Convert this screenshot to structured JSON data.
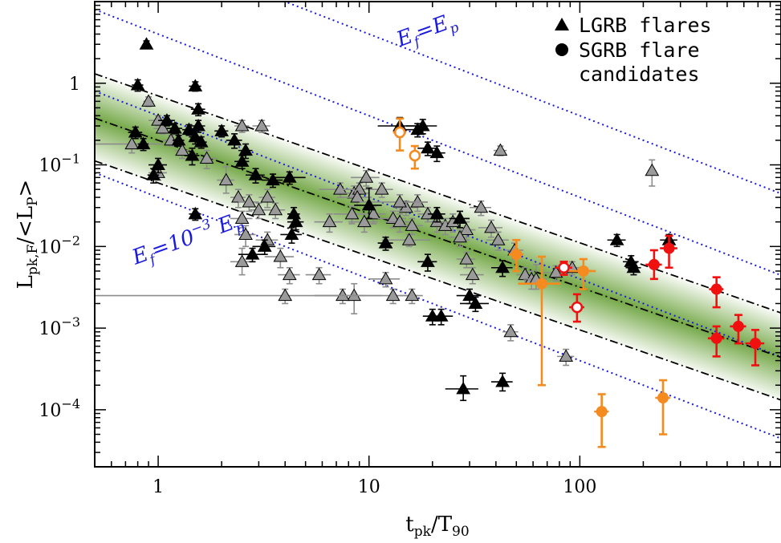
{
  "chart_data": {
    "type": "scatter",
    "xlabel": {
      "main": "t",
      "sub1": "pk",
      "mid": "/T",
      "sub2": "90"
    },
    "ylabel": {
      "main": "L",
      "sub1": "pk,F",
      "mid": "/<L",
      "sub2": "P",
      "end": ">"
    },
    "x_scale": "log",
    "y_scale": "log",
    "xlim": [
      0.5,
      900
    ],
    "ylim": [
      2e-05,
      10
    ],
    "x_ticks": [
      {
        "value": 1,
        "label": "1"
      },
      {
        "value": 10,
        "label": "10"
      },
      {
        "value": 100,
        "label": "100"
      }
    ],
    "y_ticks": [
      {
        "value": 1,
        "label": "1",
        "base": "",
        "exp": ""
      },
      {
        "value": 0.1,
        "label": "",
        "base": "10",
        "exp": "−1"
      },
      {
        "value": 0.01,
        "label": "",
        "base": "10",
        "exp": "−2"
      },
      {
        "value": 0.001,
        "label": "",
        "base": "10",
        "exp": "−3"
      },
      {
        "value": 0.0001,
        "label": "",
        "base": "10",
        "exp": "−4"
      }
    ],
    "legend": {
      "position": "top-right",
      "entries": [
        {
          "marker": "triangle",
          "label_lines": [
            "LGRB flares"
          ]
        },
        {
          "marker": "circle",
          "label_lines": [
            "SGRB flare",
            "candidates"
          ]
        }
      ]
    },
    "annotations": [
      {
        "text_main": "E",
        "sub": "f",
        "eq": "=E",
        "sub2": "p",
        "sup": "",
        "tail": "",
        "x": 14,
        "y": 2.8,
        "angle": -20
      },
      {
        "text_main": "E",
        "sub": "f",
        "eq": "=10",
        "sup": "−3",
        "tail": " E",
        "sub2": "p",
        "x": 0.78,
        "y": 0.006,
        "angle": -20
      }
    ],
    "colors": {
      "lgrb_black": "#000000",
      "lgrb_gray": "#8c8c8c",
      "sgrb_orange": "#f58a1f",
      "sgrb_red": "#f01010",
      "reference_lines": "#1a1adf",
      "fit_lines": "#000000",
      "band": "#5e9a2a"
    },
    "reference_lines": [
      {
        "slope": -1,
        "amplitude": 40
      },
      {
        "slope": -1,
        "amplitude": 4
      },
      {
        "slope": -1,
        "amplitude": 0.4
      },
      {
        "slope": -1,
        "amplitude": 0.04
      }
    ],
    "fit": {
      "slope": -0.9,
      "center_amplitude": 0.2,
      "upper_amplitude": 0.7,
      "lower_amplitude": 0.06
    },
    "series": [
      {
        "kind": "lgrb_black",
        "points": [
          [
            0.88,
            3.0,
            0.03,
            0.3,
            0.3
          ],
          [
            0.8,
            0.95,
            0.05,
            0.15,
            0.15
          ],
          [
            1.5,
            0.92,
            0.1,
            0.12,
            0.12
          ],
          [
            1.55,
            0.48,
            0.12,
            0.08,
            0.08
          ],
          [
            0.78,
            0.25,
            0.06,
            0.04,
            0.04
          ],
          [
            0.85,
            0.18,
            0.05,
            0.03,
            0.03
          ],
          [
            1.1,
            0.35,
            0.1,
            0.05,
            0.05
          ],
          [
            1.2,
            0.28,
            0.1,
            0.04,
            0.04
          ],
          [
            1.25,
            0.2,
            0.08,
            0.03,
            0.03
          ],
          [
            1.4,
            0.27,
            0.1,
            0.04,
            0.04
          ],
          [
            1.5,
            0.22,
            0.1,
            0.04,
            0.04
          ],
          [
            1.55,
            0.3,
            0.12,
            0.05,
            0.05
          ],
          [
            1.6,
            0.19,
            0.1,
            0.03,
            0.03
          ],
          [
            1.0,
            0.1,
            0.1,
            0.02,
            0.02
          ],
          [
            0.95,
            0.075,
            0.06,
            0.015,
            0.015
          ],
          [
            1.45,
            0.13,
            0.12,
            0.03,
            0.03
          ],
          [
            2.0,
            0.26,
            0.15,
            0.04,
            0.04
          ],
          [
            2.3,
            0.2,
            0.2,
            0.04,
            0.04
          ],
          [
            2.6,
            0.15,
            0.2,
            0.03,
            0.03
          ],
          [
            2.5,
            0.11,
            0.2,
            0.02,
            0.02
          ],
          [
            2.9,
            0.075,
            0.3,
            0.015,
            0.015
          ],
          [
            3.5,
            0.065,
            0.4,
            0.012,
            0.012
          ],
          [
            4.2,
            0.07,
            0.8,
            0.012,
            0.012
          ],
          [
            4.4,
            0.025,
            0.3,
            0.005,
            0.005
          ],
          [
            4.5,
            0.02,
            0.4,
            0.004,
            0.004
          ],
          [
            4.3,
            0.014,
            0.5,
            0.003,
            0.003
          ],
          [
            3.2,
            0.01,
            0.4,
            0.002,
            0.002
          ],
          [
            2.8,
            0.008,
            0.4,
            0.0015,
            0.0015
          ],
          [
            1.5,
            0.025,
            0.1,
            0.004,
            0.004
          ],
          [
            14,
            0.3,
            3.0,
            0.08,
            0.08
          ],
          [
            18,
            0.3,
            3.0,
            0.06,
            0.06
          ],
          [
            17,
            0.27,
            2.0,
            0.05,
            0.05
          ],
          [
            19,
            0.16,
            2.0,
            0.03,
            0.03
          ],
          [
            21,
            0.14,
            2.0,
            0.03,
            0.03
          ],
          [
            10,
            0.032,
            1.5,
            0.02,
            0.01
          ],
          [
            12,
            0.011,
            1.0,
            0.002,
            0.002
          ],
          [
            19,
            0.0065,
            2.0,
            0.0015,
            0.0015
          ],
          [
            21,
            0.025,
            2.0,
            0.005,
            0.005
          ],
          [
            27,
            0.022,
            3.0,
            0.005,
            0.005
          ],
          [
            43,
            0.0055,
            5.0,
            0.0012,
            0.0012
          ],
          [
            30,
            0.0025,
            4.0,
            0.0005,
            0.0005
          ],
          [
            32,
            0.002,
            5.0,
            0.0004,
            0.0004
          ],
          [
            20,
            0.0014,
            2.0,
            0.0003,
            0.0003
          ],
          [
            22,
            0.0014,
            3.0,
            0.0003,
            0.0003
          ],
          [
            28,
            0.00018,
            5.0,
            8e-05,
            5e-05
          ],
          [
            43,
            0.00022,
            5.0,
            6e-05,
            5e-05
          ],
          [
            150,
            0.012,
            15,
            0.002,
            0.002
          ],
          [
            175,
            0.0065,
            15,
            0.0012,
            0.0012
          ],
          [
            180,
            0.0055,
            15,
            0.001,
            0.001
          ],
          [
            265,
            0.012,
            25,
            0.002,
            0.002
          ]
        ]
      },
      {
        "kind": "lgrb_gray",
        "points": [
          [
            0.9,
            0.6,
            0.05,
            0.08,
            0.08
          ],
          [
            1.0,
            0.35,
            0.1,
            0.05,
            0.05
          ],
          [
            1.05,
            0.28,
            0.1,
            0.04,
            0.04
          ],
          [
            1.15,
            0.2,
            0.1,
            0.03,
            0.03
          ],
          [
            0.75,
            0.18,
            0.3,
            0.04,
            0.04
          ],
          [
            1.0,
            0.08,
            0.1,
            0.015,
            0.015
          ],
          [
            1.3,
            0.15,
            0.1,
            0.03,
            0.03
          ],
          [
            1.7,
            0.12,
            0.2,
            0.03,
            0.03
          ],
          [
            2.1,
            0.065,
            0.2,
            0.03,
            0.02
          ],
          [
            2.5,
            0.3,
            0.2,
            0.05,
            0.05
          ],
          [
            3.1,
            0.3,
            0.3,
            0.05,
            0.05
          ],
          [
            2.4,
            0.04,
            0.2,
            0.01,
            0.01
          ],
          [
            2.7,
            0.035,
            0.3,
            0.008,
            0.008
          ],
          [
            2.5,
            0.022,
            0.3,
            0.005,
            0.005
          ],
          [
            3.0,
            0.028,
            0.3,
            0.006,
            0.006
          ],
          [
            3.3,
            0.04,
            0.3,
            0.01,
            0.01
          ],
          [
            3.6,
            0.028,
            0.4,
            0.006,
            0.006
          ],
          [
            2.6,
            0.014,
            0.3,
            0.004,
            0.004
          ],
          [
            3.3,
            0.012,
            0.4,
            0.003,
            0.003
          ],
          [
            2.5,
            0.0065,
            0.3,
            0.003,
            0.002
          ],
          [
            3.8,
            0.0075,
            0.6,
            0.002,
            0.002
          ],
          [
            4.2,
            0.0045,
            0.5,
            0.001,
            0.001
          ],
          [
            5.8,
            0.0045,
            0.8,
            0.001,
            0.001
          ],
          [
            6.5,
            0.02,
            1.0,
            0.005,
            0.005
          ],
          [
            7.3,
            0.05,
            1.5,
            0.01,
            0.01
          ],
          [
            8.5,
            0.045,
            1.5,
            0.01,
            0.01
          ],
          [
            9.0,
            0.05,
            1.5,
            0.01,
            0.01
          ],
          [
            8.3,
            0.025,
            1.5,
            0.006,
            0.006
          ],
          [
            9.5,
            0.02,
            1.5,
            0.005,
            0.005
          ],
          [
            8.8,
            0.04,
            1.5,
            0.008,
            0.008
          ],
          [
            9.7,
            0.07,
            1.5,
            0.015,
            0.015
          ],
          [
            11.5,
            0.05,
            1.5,
            0.01,
            0.01
          ],
          [
            10.5,
            0.025,
            1.5,
            0.006,
            0.006
          ],
          [
            13,
            0.022,
            2.0,
            0.005,
            0.005
          ],
          [
            14,
            0.02,
            2.0,
            0.005,
            0.005
          ],
          [
            15,
            0.03,
            2.0,
            0.006,
            0.006
          ],
          [
            16,
            0.018,
            2.0,
            0.004,
            0.004
          ],
          [
            17,
            0.035,
            2.0,
            0.008,
            0.008
          ],
          [
            19,
            0.025,
            2.0,
            0.005,
            0.005
          ],
          [
            21,
            0.02,
            2.0,
            0.005,
            0.005
          ],
          [
            23,
            0.018,
            3.0,
            0.004,
            0.004
          ],
          [
            25,
            0.02,
            3.0,
            0.005,
            0.005
          ],
          [
            27,
            0.022,
            3.0,
            0.005,
            0.005
          ],
          [
            29,
            0.016,
            3.0,
            0.004,
            0.004
          ],
          [
            27,
            0.013,
            3.0,
            0.003,
            0.003
          ],
          [
            34,
            0.03,
            4.0,
            0.006,
            0.006
          ],
          [
            38,
            0.017,
            5.0,
            0.004,
            0.004
          ],
          [
            41,
            0.012,
            5.0,
            0.003,
            0.003
          ],
          [
            29,
            0.007,
            3.0,
            0.0015,
            0.0015
          ],
          [
            31,
            0.0045,
            4.0,
            0.001,
            0.001
          ],
          [
            42,
            0.15,
            3.0,
            0.02,
            0.02
          ],
          [
            49,
            0.009,
            5.0,
            0.002,
            0.002
          ],
          [
            55,
            0.0045,
            5.0,
            0.001,
            0.001
          ],
          [
            59,
            0.004,
            5.0,
            0.001,
            0.001
          ],
          [
            62,
            0.004,
            8.0,
            0.002,
            0.001
          ],
          [
            47,
            0.0009,
            4.0,
            0.0002,
            0.0002
          ],
          [
            77,
            0.0048,
            10,
            0.001,
            0.001
          ],
          [
            92,
            0.0055,
            10,
            0.001,
            0.001
          ],
          [
            86,
            0.00045,
            8.0,
            0.0001,
            0.0001
          ],
          [
            220,
            0.085,
            10,
            0.03,
            0.03
          ],
          [
            8.5,
            0.0025,
            3.0,
            0.001,
            0.001
          ],
          [
            7.5,
            0.0025,
            2.0,
            0.0005,
            0.0005
          ],
          [
            4.0,
            0.0025,
            4.0,
            0.0005,
            0.0005
          ],
          [
            13,
            0.0025,
            4.0,
            0.0005,
            0.0005
          ],
          [
            16,
            0.0025,
            2.0,
            0.0005,
            0.0005
          ],
          [
            12,
            0.004,
            2.0,
            0.0008,
            0.0008
          ],
          [
            14,
            0.035,
            5.0,
            0.008,
            0.008
          ],
          [
            15.5,
            0.012,
            4.0,
            0.002,
            0.002
          ]
        ]
      },
      {
        "kind": "sgrb_orange",
        "filled": true,
        "points": [
          [
            50,
            0.008,
            4.0,
            0.004,
            0.003
          ],
          [
            66,
            0.0035,
            15,
            0.004,
            0.0033
          ],
          [
            104,
            0.005,
            15,
            0.002,
            0.002
          ],
          [
            127,
            9.5e-05,
            10,
            6e-05,
            6e-05
          ],
          [
            248,
            0.00014,
            20,
            9e-05,
            9e-05
          ]
        ]
      },
      {
        "kind": "sgrb_orange",
        "filled": false,
        "points": [
          [
            14,
            0.25,
            1.0,
            0.12,
            0.1
          ],
          [
            16.5,
            0.13,
            1.0,
            0.04,
            0.04
          ]
        ]
      },
      {
        "kind": "sgrb_red",
        "filled": true,
        "points": [
          [
            225,
            0.006,
            20,
            0.003,
            0.002
          ],
          [
            265,
            0.0095,
            25,
            0.004,
            0.004
          ],
          [
            445,
            0.003,
            35,
            0.0012,
            0.0012
          ],
          [
            445,
            0.00075,
            40,
            0.0003,
            0.0003
          ],
          [
            565,
            0.00105,
            50,
            0.0004,
            0.0004
          ],
          [
            680,
            0.00065,
            70,
            0.0003,
            0.0003
          ]
        ]
      },
      {
        "kind": "sgrb_red",
        "filled": false,
        "points": [
          [
            84,
            0.0055,
            8.0,
            0.001,
            0.001
          ],
          [
            97,
            0.0018,
            8.0,
            0.0008,
            0.0006
          ]
        ]
      }
    ]
  }
}
